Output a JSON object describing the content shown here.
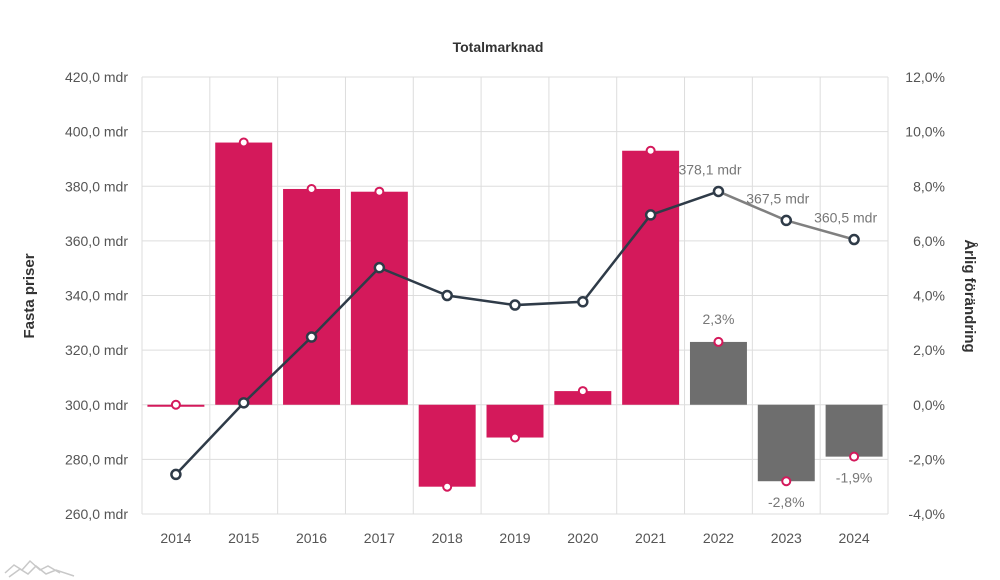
{
  "chart_data": {
    "type": "bar",
    "title": "Totalmarknad",
    "ylabel_left": "Fasta priser",
    "ylabel_right": "Årlig förändring",
    "categories": [
      "2014",
      "2015",
      "2016",
      "2017",
      "2018",
      "2019",
      "2020",
      "2021",
      "2022",
      "2023",
      "2024"
    ],
    "left_ticks": [
      "260,0 mdr",
      "280,0 mdr",
      "300,0 mdr",
      "320,0 mdr",
      "340,0 mdr",
      "360,0 mdr",
      "380,0 mdr",
      "400,0 mdr",
      "420,0 mdr"
    ],
    "right_ticks": [
      "-4,0%",
      "-2,0%",
      "0,0%",
      "2,0%",
      "4,0%",
      "6,0%",
      "8,0%",
      "10,0%",
      "12,0%"
    ],
    "ylim_left": [
      260,
      420
    ],
    "ylim_right": [
      -4,
      12
    ],
    "series": [
      {
        "name": "",
        "type": "bar",
        "axis": "right",
        "values": [
          0.0,
          9.6,
          7.9,
          7.8,
          -3.0,
          -1.2,
          0.5,
          9.3,
          2.3,
          -2.8,
          -1.9
        ]
      },
      {
        "name": "",
        "type": "line",
        "axis": "left",
        "values": [
          274.5,
          300.7,
          324.8,
          350.2,
          340.0,
          336.5,
          337.7,
          369.5,
          378.1,
          367.5,
          360.5
        ]
      }
    ],
    "bar_labels": {
      "8": "2,3%",
      "9": "-2,8%",
      "10": "-1,9%"
    },
    "line_labels": {
      "8": "378,1 mdr",
      "9": "367,5 mdr",
      "10": "360,5 mdr"
    },
    "forecast_from_index": 8,
    "grid": true,
    "colors": {
      "actual_bar": "#d4195b",
      "forecast_bar": "#6e6e6e",
      "actual_line": "#2f3b48",
      "forecast_line": "#808080",
      "marker_ring": "#d4195b"
    }
  }
}
